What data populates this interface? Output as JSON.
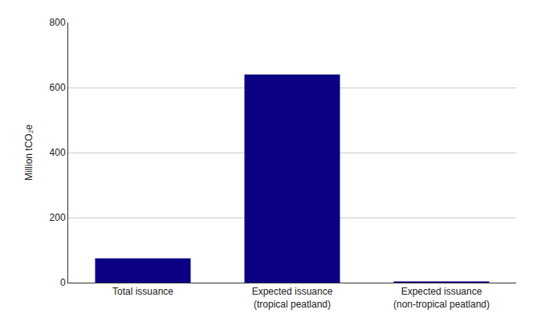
{
  "chart_data": {
    "type": "bar",
    "y_label": "Million tCO₂e",
    "categories": [
      "Total issuance",
      "Expected issuance (tropical peatland)",
      "Expected issuance (non-tropical peatland)"
    ],
    "values": [
      75,
      640,
      4
    ],
    "color": "#0b0083",
    "ylim": [
      0,
      800
    ],
    "yticks": [
      0,
      200,
      400,
      600,
      800
    ],
    "grid": true
  }
}
